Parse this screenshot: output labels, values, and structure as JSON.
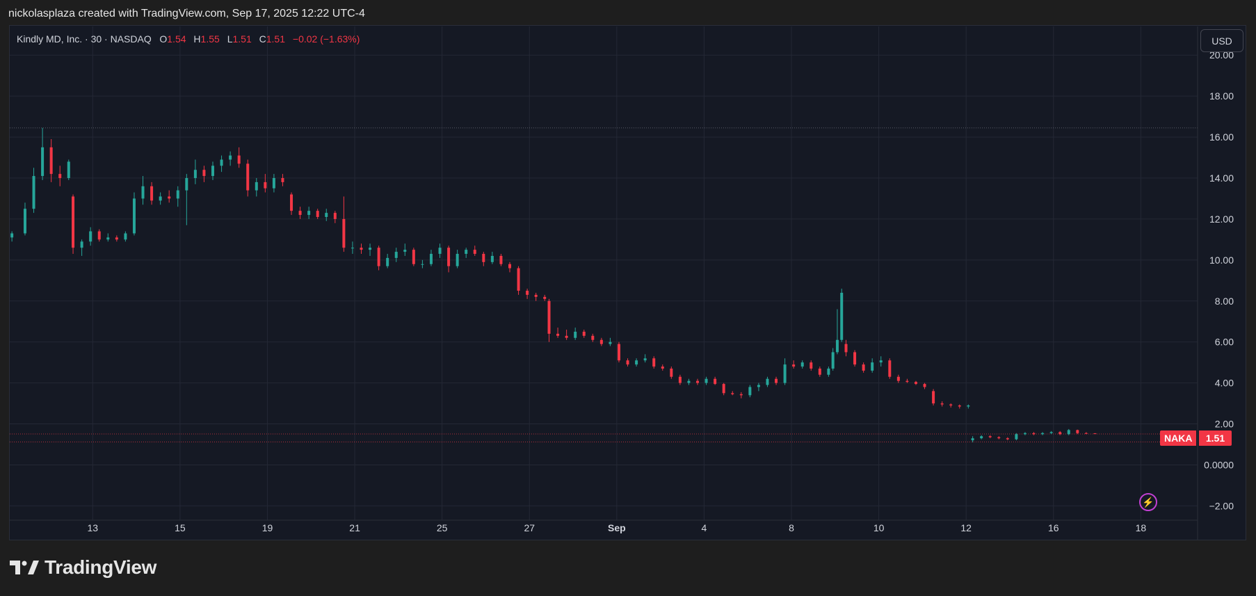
{
  "caption": "nickolasplaza created with TradingView.com, Sep 17, 2025 12:22 UTC-4",
  "brand": {
    "name": "TradingView",
    "logo_icon": "tradingview-logo-icon"
  },
  "toolbar": {
    "currency": "USD"
  },
  "legend": {
    "symbol_line": "Kindly MD, Inc. · 30 · NASDAQ",
    "open_label": "O",
    "open": "1.54",
    "high_label": "H",
    "high": "1.55",
    "low_label": "L",
    "low": "1.51",
    "close_label": "C",
    "close": "1.51",
    "change": "−0.02 (−1.63%)"
  },
  "price_tag": {
    "symbol": "NAKA",
    "value": "1.51"
  },
  "colors": {
    "up": "#26a69a",
    "down": "#f23645",
    "background": "#151924",
    "grid": "#242835",
    "text": "#d1d4dc",
    "tag": "#f23645",
    "bolt": "#c240d3"
  },
  "icons": {
    "lightning": "lightning-bolt-icon"
  },
  "chart_data": {
    "type": "candlestick",
    "interval": "30",
    "symbol": "NAKA",
    "x_tick_labels": [
      "13",
      "15",
      "19",
      "21",
      "25",
      "27",
      "Sep",
      "4",
      "8",
      "10",
      "12",
      "16",
      "18"
    ],
    "y_tick_labels": [
      "20.00",
      "18.00",
      "16.00",
      "14.00",
      "12.00",
      "10.00",
      "8.00",
      "6.00",
      "4.00",
      "2.00",
      "0.0000",
      "−2.00"
    ],
    "y_ticks": [
      20,
      18,
      16,
      14,
      12,
      10,
      8,
      6,
      4,
      2,
      0,
      -2
    ],
    "ylim": [
      -2.7,
      21.4
    ],
    "xlim": [
      -0.9,
      26.3
    ],
    "x_tick_positions": [
      1,
      3,
      5,
      7,
      9,
      11,
      13,
      15,
      17,
      19,
      21,
      23,
      25
    ],
    "grid": true,
    "reference_lines": [
      16.45,
      1.51,
      1.12
    ],
    "last_price": 1.51,
    "candles": [
      [
        -0.85,
        11.1,
        11.4,
        10.9,
        11.3
      ],
      [
        -0.55,
        11.3,
        12.8,
        11.2,
        12.5
      ],
      [
        -0.35,
        12.5,
        14.5,
        12.3,
        14.1
      ],
      [
        -0.15,
        14.1,
        16.45,
        13.9,
        15.5
      ],
      [
        0.05,
        15.5,
        15.9,
        13.8,
        14.2
      ],
      [
        0.25,
        14.2,
        14.6,
        13.6,
        14.0
      ],
      [
        0.45,
        14.0,
        14.9,
        13.9,
        14.8
      ],
      [
        0.55,
        13.1,
        13.2,
        10.3,
        10.6
      ],
      [
        0.75,
        10.6,
        11.0,
        10.2,
        10.9
      ],
      [
        0.95,
        10.9,
        11.6,
        10.7,
        11.4
      ],
      [
        1.15,
        11.4,
        11.5,
        10.9,
        11.0
      ],
      [
        1.35,
        11.0,
        11.3,
        10.9,
        11.1
      ],
      [
        1.55,
        11.1,
        11.2,
        10.9,
        11.0
      ],
      [
        1.75,
        11.0,
        11.4,
        10.9,
        11.3
      ],
      [
        1.95,
        11.3,
        13.3,
        11.2,
        13.0
      ],
      [
        2.15,
        13.0,
        14.1,
        12.7,
        13.6
      ],
      [
        2.35,
        13.6,
        13.8,
        12.7,
        12.9
      ],
      [
        2.55,
        12.9,
        13.3,
        12.7,
        13.1
      ],
      [
        2.75,
        13.1,
        13.4,
        12.8,
        13.0
      ],
      [
        2.95,
        13.0,
        13.6,
        12.6,
        13.4
      ],
      [
        3.15,
        13.4,
        14.2,
        11.7,
        14.0
      ],
      [
        3.35,
        14.0,
        14.9,
        13.7,
        14.4
      ],
      [
        3.55,
        14.4,
        14.6,
        13.8,
        14.1
      ],
      [
        3.75,
        14.1,
        14.8,
        13.9,
        14.6
      ],
      [
        3.95,
        14.6,
        15.1,
        14.3,
        14.9
      ],
      [
        4.15,
        14.9,
        15.3,
        14.6,
        15.1
      ],
      [
        4.35,
        15.1,
        15.5,
        14.5,
        14.7
      ],
      [
        4.55,
        14.7,
        14.9,
        13.1,
        13.4
      ],
      [
        4.75,
        13.4,
        14.0,
        13.1,
        13.8
      ],
      [
        4.95,
        13.8,
        14.2,
        13.3,
        13.5
      ],
      [
        5.15,
        13.5,
        14.2,
        13.3,
        14.0
      ],
      [
        5.35,
        14.0,
        14.2,
        13.6,
        13.8
      ],
      [
        5.55,
        13.2,
        13.3,
        12.2,
        12.4
      ],
      [
        5.75,
        12.4,
        12.6,
        12.0,
        12.2
      ],
      [
        5.95,
        12.2,
        12.6,
        12.0,
        12.4
      ],
      [
        6.15,
        12.4,
        12.5,
        12.0,
        12.1
      ],
      [
        6.35,
        12.1,
        12.5,
        11.9,
        12.3
      ],
      [
        6.55,
        12.3,
        12.4,
        11.8,
        12.0
      ],
      [
        6.75,
        12.0,
        13.1,
        10.4,
        10.6
      ],
      [
        6.95,
        10.6,
        10.9,
        10.3,
        10.6
      ],
      [
        7.15,
        10.6,
        10.8,
        10.3,
        10.5
      ],
      [
        7.35,
        10.5,
        10.8,
        10.2,
        10.6
      ],
      [
        7.55,
        10.6,
        10.7,
        9.5,
        9.7
      ],
      [
        7.75,
        9.7,
        10.3,
        9.6,
        10.1
      ],
      [
        7.95,
        10.1,
        10.6,
        9.9,
        10.4
      ],
      [
        8.15,
        10.4,
        10.8,
        10.2,
        10.5
      ],
      [
        8.35,
        10.5,
        10.6,
        9.7,
        9.8
      ],
      [
        8.55,
        9.8,
        10.0,
        9.6,
        9.8
      ],
      [
        8.75,
        9.8,
        10.5,
        9.7,
        10.3
      ],
      [
        8.95,
        10.3,
        10.8,
        10.1,
        10.6
      ],
      [
        9.15,
        10.6,
        10.7,
        9.4,
        9.7
      ],
      [
        9.35,
        9.7,
        10.5,
        9.6,
        10.3
      ],
      [
        9.55,
        10.3,
        10.6,
        10.1,
        10.5
      ],
      [
        9.75,
        10.5,
        10.7,
        10.2,
        10.3
      ],
      [
        9.95,
        10.3,
        10.4,
        9.7,
        9.9
      ],
      [
        10.15,
        9.9,
        10.4,
        9.8,
        10.2
      ],
      [
        10.35,
        10.2,
        10.3,
        9.7,
        9.8
      ],
      [
        10.55,
        9.8,
        9.9,
        9.4,
        9.6
      ],
      [
        10.75,
        9.6,
        9.7,
        8.3,
        8.5
      ],
      [
        10.95,
        8.5,
        8.6,
        8.1,
        8.3
      ],
      [
        11.15,
        8.3,
        8.4,
        8.0,
        8.2
      ],
      [
        11.35,
        8.2,
        8.3,
        8.0,
        8.1
      ],
      [
        11.45,
        8.0,
        8.1,
        6.0,
        6.4
      ],
      [
        11.65,
        6.4,
        6.7,
        6.2,
        6.3
      ],
      [
        11.85,
        6.3,
        6.6,
        6.1,
        6.2
      ],
      [
        12.05,
        6.2,
        6.7,
        6.1,
        6.5
      ],
      [
        12.25,
        6.5,
        6.6,
        6.2,
        6.3
      ],
      [
        12.45,
        6.3,
        6.4,
        6.0,
        6.1
      ],
      [
        12.65,
        6.1,
        6.2,
        5.8,
        5.9
      ],
      [
        12.85,
        5.9,
        6.2,
        5.8,
        6.0
      ],
      [
        13.05,
        5.9,
        6.0,
        5.0,
        5.1
      ],
      [
        13.25,
        5.1,
        5.2,
        4.8,
        4.9
      ],
      [
        13.45,
        4.9,
        5.2,
        4.8,
        5.1
      ],
      [
        13.65,
        5.1,
        5.4,
        5.0,
        5.2
      ],
      [
        13.85,
        5.2,
        5.3,
        4.7,
        4.8
      ],
      [
        14.05,
        4.8,
        4.9,
        4.6,
        4.7
      ],
      [
        14.25,
        4.7,
        4.8,
        4.2,
        4.3
      ],
      [
        14.45,
        4.3,
        4.4,
        3.9,
        4.0
      ],
      [
        14.65,
        4.0,
        4.2,
        3.9,
        4.1
      ],
      [
        14.85,
        4.1,
        4.2,
        3.9,
        4.0
      ],
      [
        15.05,
        4.0,
        4.3,
        3.9,
        4.2
      ],
      [
        15.25,
        4.2,
        4.3,
        3.9,
        3.95
      ],
      [
        15.45,
        3.95,
        4.0,
        3.4,
        3.5
      ],
      [
        15.65,
        3.5,
        3.6,
        3.4,
        3.45
      ],
      [
        15.85,
        3.45,
        3.55,
        3.25,
        3.4
      ],
      [
        16.05,
        3.4,
        3.9,
        3.3,
        3.8
      ],
      [
        16.25,
        3.8,
        4.0,
        3.6,
        3.9
      ],
      [
        16.45,
        3.9,
        4.3,
        3.8,
        4.2
      ],
      [
        16.65,
        4.2,
        4.3,
        3.9,
        4.0
      ],
      [
        16.85,
        4.0,
        5.2,
        3.9,
        4.9
      ],
      [
        17.05,
        4.9,
        5.1,
        4.7,
        4.8
      ],
      [
        17.25,
        4.8,
        5.1,
        4.7,
        5.0
      ],
      [
        17.45,
        5.0,
        5.1,
        4.6,
        4.7
      ],
      [
        17.65,
        4.7,
        4.8,
        4.3,
        4.4
      ],
      [
        17.85,
        4.4,
        4.8,
        4.3,
        4.7
      ],
      [
        17.95,
        4.7,
        5.7,
        4.6,
        5.5
      ],
      [
        18.05,
        5.5,
        7.6,
        5.4,
        6.1
      ],
      [
        18.15,
        6.1,
        8.6,
        6.0,
        8.4
      ],
      [
        18.25,
        5.9,
        6.1,
        5.3,
        5.5
      ],
      [
        18.45,
        5.5,
        5.6,
        4.8,
        4.9
      ],
      [
        18.65,
        4.9,
        5.0,
        4.5,
        4.6
      ],
      [
        18.85,
        4.6,
        5.2,
        4.5,
        5.0
      ],
      [
        19.05,
        5.0,
        5.3,
        4.8,
        5.1
      ],
      [
        19.25,
        5.1,
        5.2,
        4.2,
        4.3
      ],
      [
        19.45,
        4.3,
        4.4,
        4.0,
        4.1
      ],
      [
        19.65,
        4.1,
        4.2,
        4.0,
        4.05
      ],
      [
        19.85,
        4.05,
        4.1,
        3.9,
        3.95
      ],
      [
        20.05,
        3.95,
        4.0,
        3.7,
        3.8
      ],
      [
        20.25,
        3.6,
        3.7,
        2.9,
        3.0
      ],
      [
        20.45,
        3.0,
        3.1,
        2.85,
        2.95
      ],
      [
        20.65,
        2.95,
        3.0,
        2.8,
        2.9
      ],
      [
        20.85,
        2.9,
        2.95,
        2.75,
        2.85
      ],
      [
        21.05,
        2.85,
        2.95,
        2.75,
        2.9
      ],
      [
        21.15,
        1.2,
        1.4,
        1.1,
        1.3
      ],
      [
        21.35,
        1.3,
        1.45,
        1.25,
        1.4
      ],
      [
        21.55,
        1.4,
        1.45,
        1.3,
        1.35
      ],
      [
        21.75,
        1.35,
        1.4,
        1.25,
        1.3
      ],
      [
        21.95,
        1.3,
        1.35,
        1.2,
        1.25
      ],
      [
        22.15,
        1.25,
        1.55,
        1.2,
        1.5
      ],
      [
        22.35,
        1.5,
        1.6,
        1.45,
        1.55
      ],
      [
        22.55,
        1.55,
        1.6,
        1.45,
        1.5
      ],
      [
        22.75,
        1.5,
        1.6,
        1.45,
        1.55
      ],
      [
        22.95,
        1.55,
        1.65,
        1.5,
        1.6
      ],
      [
        23.15,
        1.6,
        1.65,
        1.45,
        1.5
      ],
      [
        23.35,
        1.5,
        1.75,
        1.45,
        1.7
      ],
      [
        23.55,
        1.7,
        1.72,
        1.5,
        1.55
      ],
      [
        23.75,
        1.55,
        1.6,
        1.5,
        1.53
      ],
      [
        23.95,
        1.54,
        1.55,
        1.51,
        1.51
      ]
    ]
  }
}
